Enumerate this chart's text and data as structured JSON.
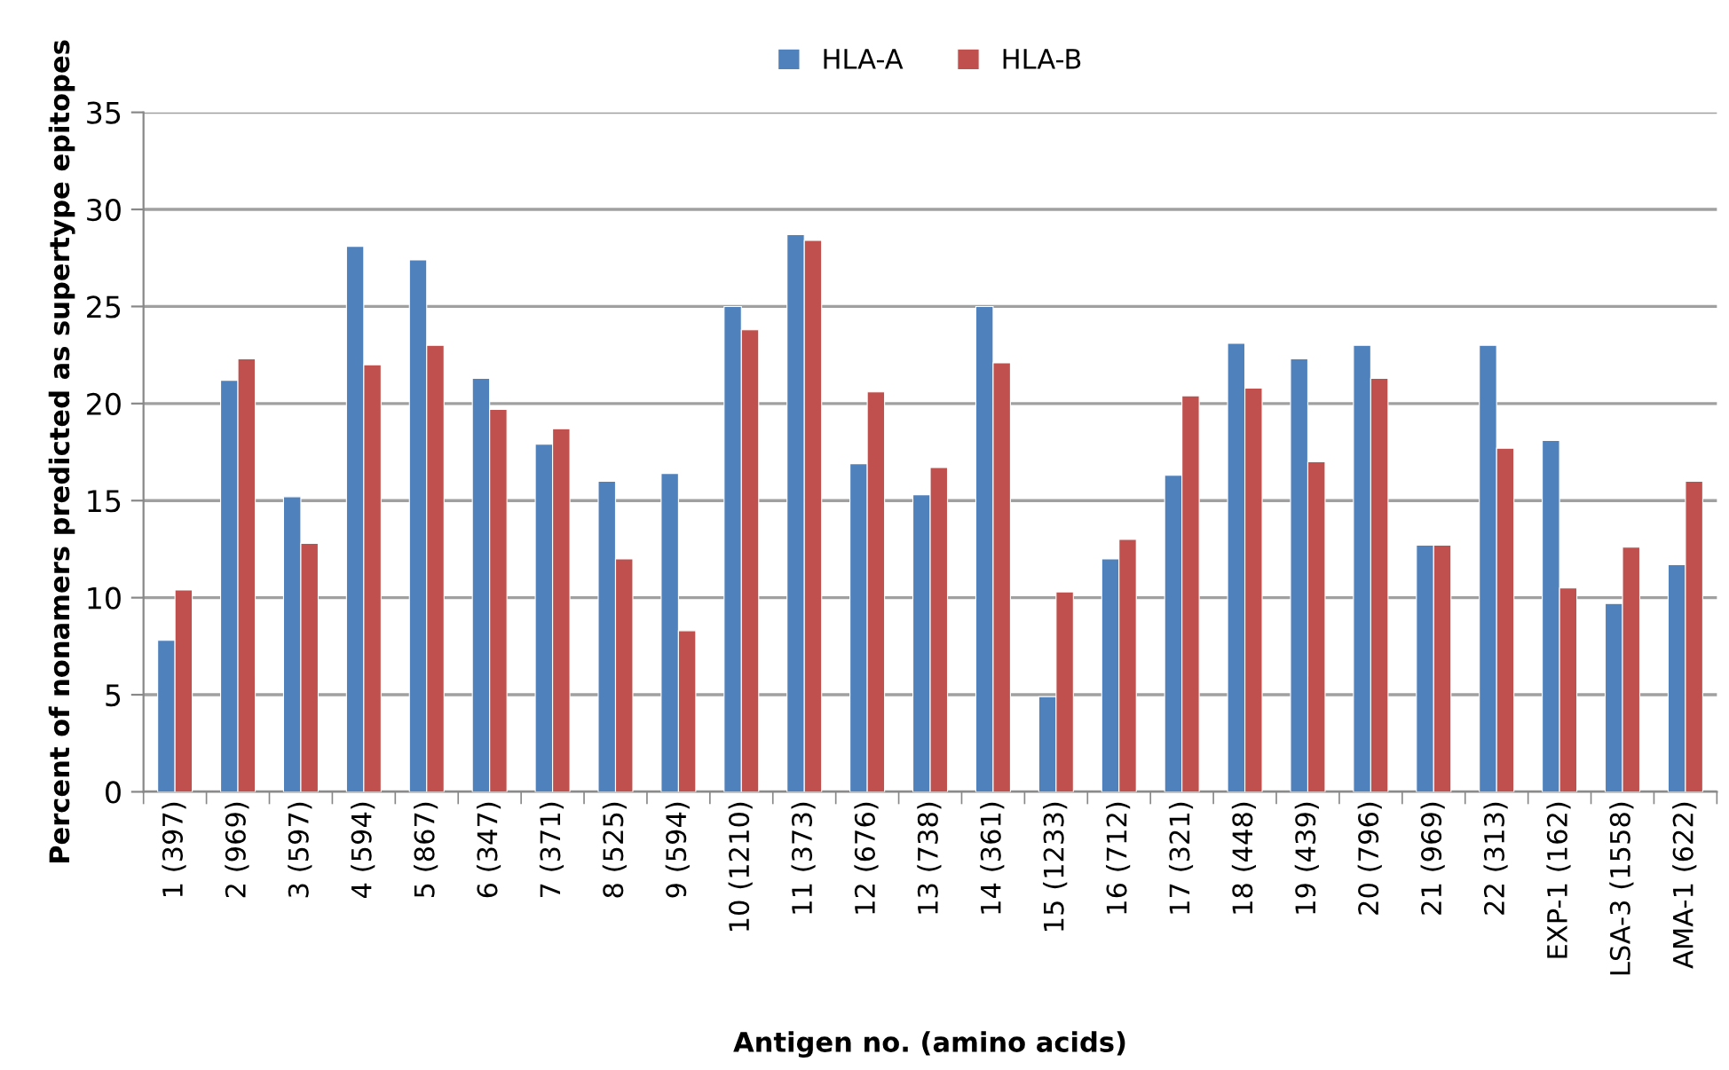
{
  "chart_data": {
    "type": "bar",
    "xlabel": "Antigen no. (amino acids)",
    "ylabel": "Percent of nonamers predicted as supertype epitopes",
    "categories": [
      "1 (397)",
      "2 (969)",
      "3 (597)",
      "4 (594)",
      "5 (867)",
      "6 (347)",
      "7 (371)",
      "8 (525)",
      "9 (594)",
      "10 (1210)",
      "11 (373)",
      "12 (676)",
      "13 (738)",
      "14 (361)",
      "15 (1233)",
      "16 (712)",
      "17 (321)",
      "18 (448)",
      "19 (439)",
      "20 (796)",
      "21 (969)",
      "22 (313)",
      "EXP-1 (162)",
      "LSA-3 (1558)",
      "AMA-1 (622)"
    ],
    "series": [
      {
        "name": "HLA-A",
        "color": "#4f81bd",
        "values": [
          7.8,
          21.2,
          15.2,
          28.1,
          27.4,
          21.3,
          17.9,
          16.0,
          16.4,
          25.0,
          28.7,
          16.9,
          15.3,
          25.0,
          4.9,
          12.0,
          16.3,
          23.1,
          22.3,
          23.0,
          12.7,
          23.0,
          18.1,
          9.7,
          11.7
        ]
      },
      {
        "name": "HLA-B",
        "color": "#c0504d",
        "values": [
          10.4,
          22.3,
          12.8,
          22.0,
          23.0,
          19.7,
          18.7,
          12.0,
          8.3,
          23.8,
          28.4,
          20.6,
          16.7,
          22.1,
          10.3,
          13.0,
          20.4,
          20.8,
          17.0,
          21.3,
          12.7,
          17.7,
          10.5,
          12.6,
          16.0
        ]
      }
    ],
    "ylim": [
      0,
      35
    ],
    "yticks": [
      0,
      5,
      10,
      15,
      20,
      25,
      30,
      35
    ],
    "grid": "y",
    "legend": "top"
  }
}
